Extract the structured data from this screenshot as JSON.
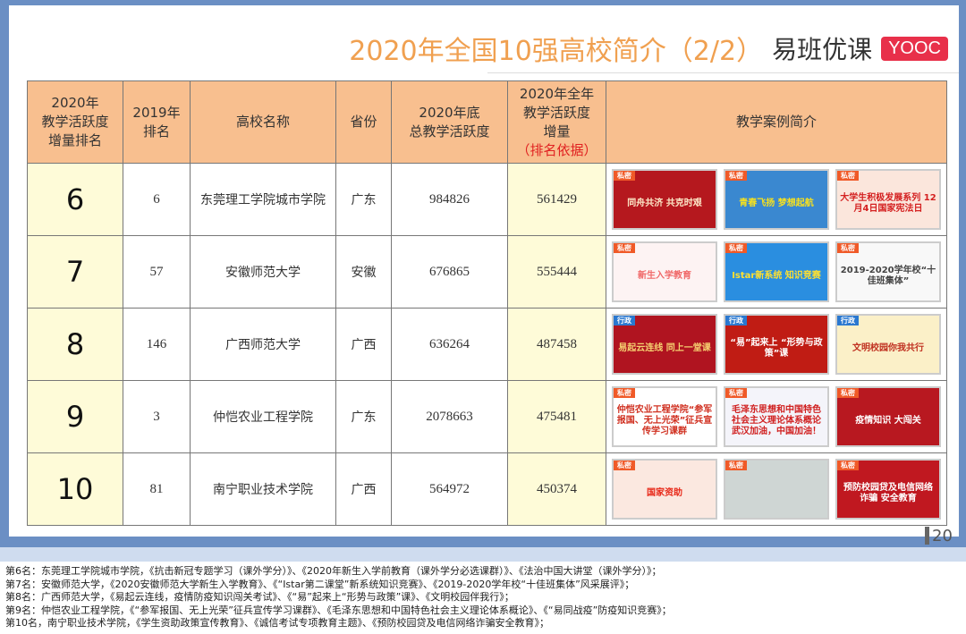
{
  "title": "2020年全国10强高校简介（2/2）",
  "logo": {
    "text": "易班优课",
    "badge": "YOOC"
  },
  "page_number": "20",
  "headers": [
    "2020年\n教学活跃度\n增量排名",
    "2019年\n排名",
    "高校名称",
    "省份",
    "2020年底\n总教学活跃度",
    "2020年全年\n教学活跃度\n增量",
    "教学案例简介"
  ],
  "header_note": "（排名依据）",
  "rows": [
    {
      "rank": "6",
      "rank2019": "6",
      "name": "东莞理工学院城市学院",
      "province": "广东",
      "total": "984826",
      "increase": "561429",
      "thumbs": [
        {
          "badge": "私密",
          "text": "同舟共济 共克时艰",
          "bg": "#b5181e",
          "fg": "#fde8c8"
        },
        {
          "badge": "私密",
          "text": "青春飞扬 梦想起航",
          "bg": "#3a88d0",
          "fg": "#f5e020"
        },
        {
          "badge": "私密",
          "text": "大学生积极发展系列 12月4日国家宪法日",
          "bg": "#fbe6dc",
          "fg": "#d42020"
        }
      ]
    },
    {
      "rank": "7",
      "rank2019": "57",
      "name": "安徽师范大学",
      "province": "安徽",
      "total": "676865",
      "increase": "555444",
      "thumbs": [
        {
          "badge": "私密",
          "text": "新生入学教育",
          "bg": "#fdf3f3",
          "fg": "#f06868"
        },
        {
          "badge": "私密",
          "text": "Istar新系统 知识竞赛",
          "bg": "#2a8ee0",
          "fg": "#ffe030"
        },
        {
          "badge": "私密",
          "text": "2019-2020学年校“十佳班集体”",
          "bg": "#f8f8f8",
          "fg": "#444"
        }
      ]
    },
    {
      "rank": "8",
      "rank2019": "146",
      "name": "广西师范大学",
      "province": "广西",
      "total": "636264",
      "increase": "487458",
      "thumbs": [
        {
          "badge": "行政",
          "text": "易起云连线 同上一堂课",
          "bg": "#b01420",
          "fg": "#f5d070"
        },
        {
          "badge": "行政",
          "text": "“易”起来上 “形势与政策”课",
          "bg": "#c01c14",
          "fg": "#fff"
        },
        {
          "badge": "行政",
          "text": "文明校园你我共行",
          "bg": "#fbf0c8",
          "fg": "#c03020"
        }
      ]
    },
    {
      "rank": "9",
      "rank2019": "3",
      "name": "仲恺农业工程学院",
      "province": "广东",
      "total": "2078663",
      "increase": "475481",
      "thumbs": [
        {
          "badge": "私密",
          "text": "仲恺农业工程学院“参军报国、无上光荣”征兵宣传学习课群",
          "bg": "#fff",
          "fg": "#d03020"
        },
        {
          "badge": "私密",
          "text": "毛泽东思想和中国特色社会主义理论体系概论 武汉加油，中国加油！",
          "bg": "#f4f4fa",
          "fg": "#d02020"
        },
        {
          "badge": "私密",
          "text": "疫情知识 大闯关",
          "bg": "#b81820",
          "fg": "#fff"
        }
      ]
    },
    {
      "rank": "10",
      "rank2019": "81",
      "name": "南宁职业技术学院",
      "province": "广西",
      "total": "564972",
      "increase": "450374",
      "thumbs": [
        {
          "badge": "私密",
          "text": "国家资助",
          "bg": "#fbe8e0",
          "fg": "#e82818"
        },
        {
          "badge": "私密",
          "text": "",
          "bg": "#cfd6d4",
          "fg": "#333"
        },
        {
          "badge": "私密",
          "text": "预防校园贷及电信网络诈骗 安全教育",
          "bg": "#c01820",
          "fg": "#fff"
        }
      ]
    }
  ],
  "notes": [
    "第6名：东莞理工学院城市学院，《抗击新冠专题学习（课外学分）》、《2020年新生入学前教育（课外学分必选课群）》、《法治中国大讲堂（课外学分）》；",
    "第7名：安徽师范大学，《2020安徽师范大学新生入学教育》、《“Istar第二课堂”新系统知识竞赛》、《2019-2020学年校“十佳班集体”风采展评》；",
    "第8名：广西师范大学，《易起云连线，疫情防疫知识闯关考试》、《“易”起来上“形势与政策”课》、《文明校园伴我行》；",
    "第9名：仲恺农业工程学院，《“参军报国、无上光荣”征兵宣传学习课群》、《毛泽东思想和中国特色社会主义理论体系概论》、《“易同战疫”防疫知识竞赛》；",
    "第10名，南宁职业技术学院，《学生资助政策宣传教育》、《诚信考试专项教育主题》、《预防校园贷及电信网络诈骗安全教育》；"
  ],
  "colors": {
    "header_bg": "#f8bf8f",
    "rank_bg": "#fefbd8",
    "title": "#f0a050",
    "note_red": "#e02020",
    "private_badge": "#f05a28",
    "admin_badge": "#2a78d0"
  }
}
